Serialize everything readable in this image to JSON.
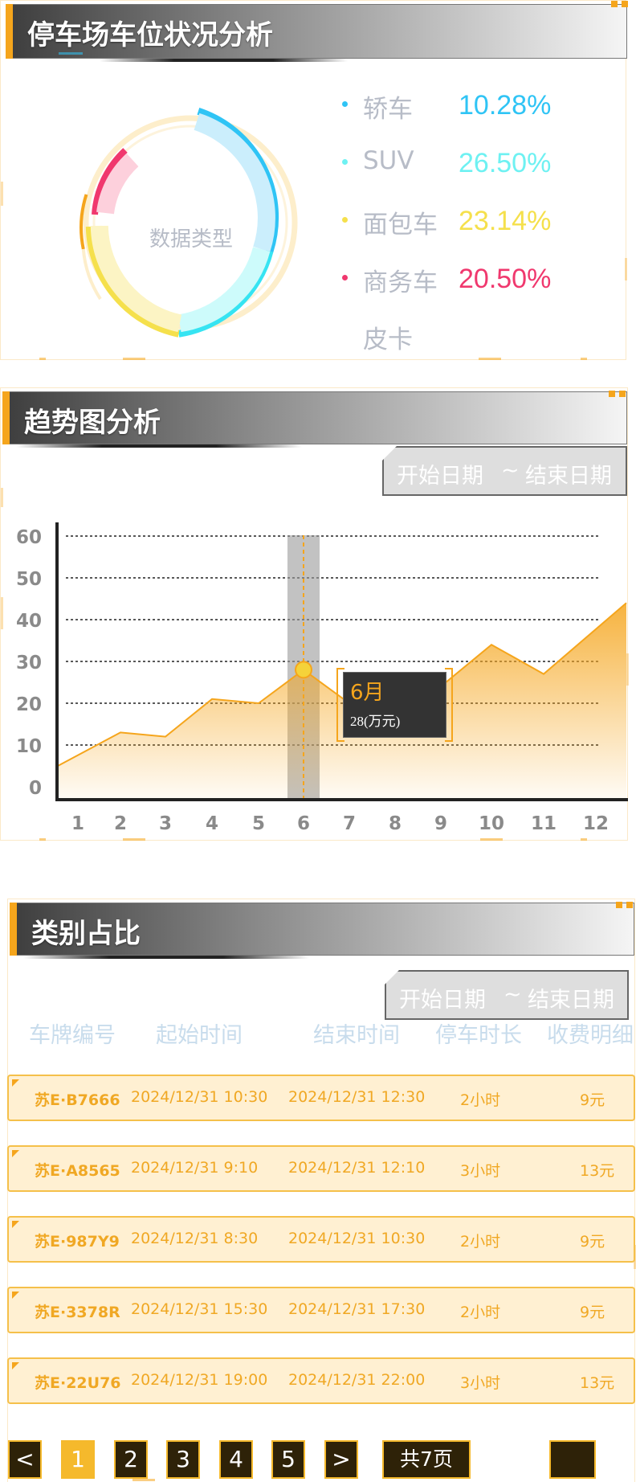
{
  "section1": {
    "title": "停车场车位状况分析",
    "donut_center_label": "数据类型",
    "legend": [
      {
        "name": "轿车",
        "percent": "10.28%",
        "color": "#2fc4f5"
      },
      {
        "name": "SUV",
        "percent": "26.50%",
        "color": "#6ef1f2"
      },
      {
        "name": "面包车",
        "percent": "23.14%",
        "color": "#f5e04c"
      },
      {
        "name": "商务车",
        "percent": "20.50%",
        "color": "#f0386e"
      },
      {
        "name": "皮卡",
        "percent": "",
        "color": "#f5a51c"
      }
    ]
  },
  "section2": {
    "title": "趋势图分析",
    "date_range": {
      "start": "开始日期",
      "sep": "~",
      "end": "结束日期"
    },
    "tooltip": {
      "month": "6月",
      "value": "28(万元)"
    }
  },
  "chart_data": {
    "type": "area",
    "x": [
      1,
      2,
      3,
      4,
      5,
      6,
      7,
      8,
      9,
      10,
      11,
      12
    ],
    "values": [
      5,
      13,
      12,
      21,
      20,
      28,
      20,
      27,
      24,
      34,
      27,
      44
    ],
    "xticks": [
      "1",
      "2",
      "3",
      "4",
      "5",
      "6",
      "7",
      "8",
      "9",
      "10",
      "11",
      "12"
    ],
    "yticks": [
      "0",
      "10",
      "20",
      "30",
      "40",
      "50",
      "60"
    ],
    "ylim": [
      0,
      62
    ],
    "highlight_index": 5,
    "grid": true,
    "color": "#f5a51c"
  },
  "section3": {
    "title": "类别占比",
    "date_range": {
      "start": "开始日期",
      "sep": "~",
      "end": "结束日期"
    },
    "columns": [
      "车牌编号",
      "起始时间",
      "结束时间",
      "停车时长",
      "收费明细"
    ],
    "rows": [
      {
        "plate": "苏E·B7666",
        "start": "2024/12/31 10:30",
        "end": "2024/12/31 12:30",
        "duration": "2小时",
        "fee": "9元"
      },
      {
        "plate": "苏E·A8565",
        "start": "2024/12/31 9:10",
        "end": "2024/12/31 12:10",
        "duration": "3小时",
        "fee": "13元"
      },
      {
        "plate": "苏E·987Y9",
        "start": "2024/12/31 8:30",
        "end": "2024/12/31 10:30",
        "duration": "2小时",
        "fee": "9元"
      },
      {
        "plate": "苏E·3378R",
        "start": "2024/12/31 15:30",
        "end": "2024/12/31 17:30",
        "duration": "2小时",
        "fee": "9元"
      },
      {
        "plate": "苏E·22U76",
        "start": "2024/12/31 19:00",
        "end": "2024/12/31 22:00",
        "duration": "3小时",
        "fee": "13元"
      }
    ],
    "pagination": {
      "prev": "<",
      "pages": [
        "1",
        "2",
        "3",
        "4",
        "5"
      ],
      "next": ">",
      "total": "共7页",
      "current": "1"
    }
  }
}
